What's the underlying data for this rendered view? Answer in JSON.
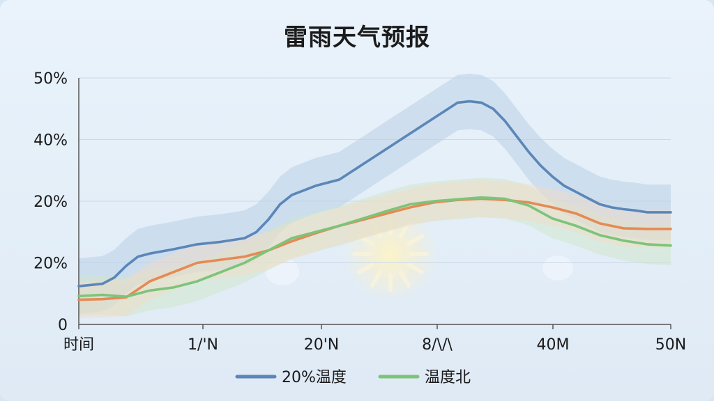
{
  "chart_data": {
    "type": "line",
    "title": "雷雨天气预报",
    "x_tick_labels": [
      "时间",
      "1/'N",
      "20'N",
      "8/\\/\\",
      "40M",
      "50N"
    ],
    "y_tick_labels": [
      "0",
      "20%",
      "20%",
      "40%",
      "50%"
    ],
    "ylim": [
      0,
      40
    ],
    "xlim": [
      0,
      50
    ],
    "grid": true,
    "legend_position": "bottom",
    "series": [
      {
        "name": "20%温度",
        "color": "#5b86b8",
        "x": [
          0,
          2,
          3,
          4,
          5,
          6,
          8,
          10,
          12,
          14,
          15,
          16,
          17,
          18,
          20,
          22,
          24,
          26,
          28,
          30,
          32,
          33,
          34,
          35,
          36,
          37,
          38,
          39,
          40,
          41,
          42,
          43,
          44,
          45,
          46,
          47,
          48,
          50
        ],
        "values": [
          6.2,
          6.6,
          7.6,
          9.5,
          11,
          11.5,
          12.2,
          13,
          13.4,
          14,
          15,
          17,
          19.5,
          21,
          22.5,
          23.5,
          26,
          28.5,
          31,
          33.5,
          36,
          36.2,
          36,
          35,
          33,
          30.5,
          28,
          25.8,
          24,
          22.5,
          21.5,
          20.5,
          19.5,
          19,
          18.7,
          18.5,
          18.2,
          18.2
        ]
      },
      {
        "name": "温度北",
        "color": "#7cc47a",
        "x": [
          0,
          2,
          4,
          6,
          8,
          10,
          12,
          14,
          16,
          18,
          20,
          22,
          24,
          26,
          28,
          30,
          32,
          34,
          36,
          38,
          40,
          42,
          44,
          46,
          48,
          50
        ],
        "values": [
          4.6,
          4.8,
          4.5,
          5.5,
          6,
          7,
          8.5,
          10,
          12,
          14,
          15,
          16,
          17.2,
          18.4,
          19.5,
          20,
          20.3,
          20.6,
          20.4,
          19.3,
          17.2,
          16,
          14.5,
          13.6,
          13,
          12.8
        ]
      },
      {
        "name": "",
        "color": "#e58a55",
        "x": [
          0,
          2,
          4,
          6,
          8,
          10,
          12,
          14,
          16,
          18,
          20,
          22,
          24,
          26,
          28,
          30,
          32,
          34,
          36,
          38,
          40,
          42,
          44,
          46,
          48,
          50
        ],
        "values": [
          4,
          4.1,
          4.4,
          7,
          8.5,
          10,
          10.5,
          11,
          12,
          13.5,
          14.8,
          16,
          17,
          18,
          19,
          19.8,
          20.2,
          20.4,
          20.2,
          19.8,
          19,
          18,
          16.4,
          15.6,
          15.5,
          15.5
        ]
      }
    ],
    "legend": [
      {
        "label": "20%温度",
        "color": "#5b86b8"
      },
      {
        "label": "温度北",
        "color": "#7cc47a"
      }
    ]
  }
}
